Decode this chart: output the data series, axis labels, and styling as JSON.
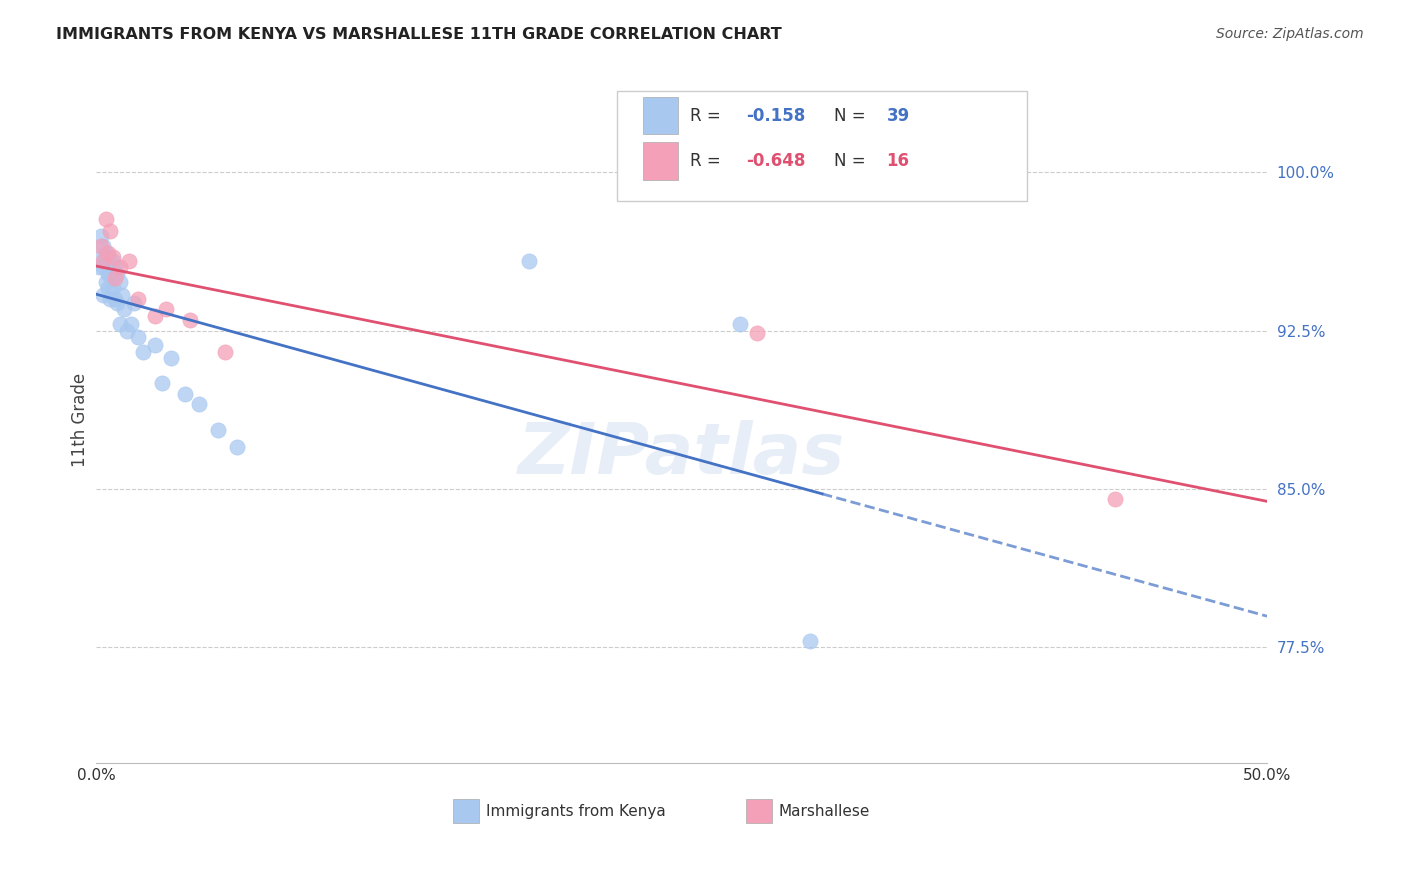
{
  "title": "IMMIGRANTS FROM KENYA VS MARSHALLESE 11TH GRADE CORRELATION CHART",
  "source": "Source: ZipAtlas.com",
  "ylabel": "11th Grade",
  "ytick_labels": [
    "77.5%",
    "85.0%",
    "92.5%",
    "100.0%"
  ],
  "ytick_values": [
    0.775,
    0.85,
    0.925,
    1.0
  ],
  "xlim": [
    0.0,
    0.5
  ],
  "ylim": [
    0.72,
    1.045
  ],
  "kenya_color": "#a8c8f0",
  "marsh_color": "#f4a0b8",
  "kenya_line_color": "#4472c4",
  "marsh_line_color": "#e05070",
  "kenya_x": [
    0.001,
    0.002,
    0.002,
    0.003,
    0.003,
    0.003,
    0.004,
    0.004,
    0.004,
    0.005,
    0.005,
    0.005,
    0.006,
    0.006,
    0.007,
    0.007,
    0.008,
    0.008,
    0.009,
    0.009,
    0.01,
    0.01,
    0.011,
    0.012,
    0.013,
    0.015,
    0.016,
    0.018,
    0.02,
    0.025,
    0.028,
    0.032,
    0.038,
    0.044,
    0.052,
    0.06,
    0.185,
    0.275,
    0.305
  ],
  "kenya_y": [
    0.955,
    0.96,
    0.97,
    0.942,
    0.955,
    0.965,
    0.958,
    0.948,
    0.962,
    0.952,
    0.945,
    0.96,
    0.952,
    0.94,
    0.958,
    0.945,
    0.955,
    0.94,
    0.952,
    0.938,
    0.948,
    0.928,
    0.942,
    0.935,
    0.925,
    0.928,
    0.938,
    0.922,
    0.915,
    0.918,
    0.9,
    0.912,
    0.895,
    0.89,
    0.878,
    0.87,
    0.958,
    0.928,
    0.778
  ],
  "marsh_x": [
    0.002,
    0.003,
    0.004,
    0.005,
    0.006,
    0.007,
    0.008,
    0.01,
    0.014,
    0.018,
    0.025,
    0.03,
    0.04,
    0.055,
    0.282,
    0.435
  ],
  "marsh_y": [
    0.965,
    0.958,
    0.978,
    0.962,
    0.972,
    0.96,
    0.95,
    0.955,
    0.958,
    0.94,
    0.932,
    0.935,
    0.93,
    0.915,
    0.924,
    0.845
  ],
  "background_color": "#ffffff",
  "grid_color": "#cccccc",
  "r_kenya": "-0.158",
  "n_kenya": "39",
  "r_marsh": "-0.648",
  "n_marsh": "16"
}
